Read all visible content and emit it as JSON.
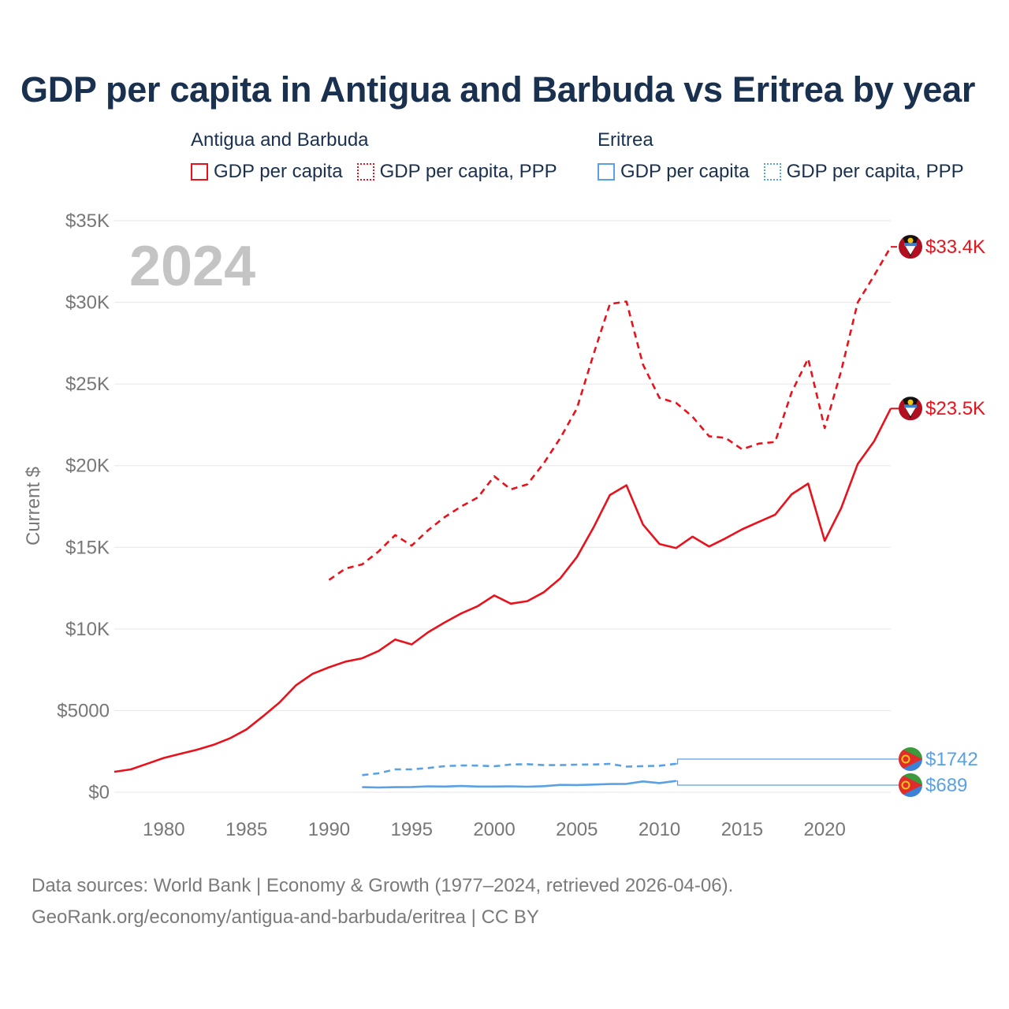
{
  "title": "GDP per capita in Antigua and Barbuda vs Eritrea by year",
  "legend": {
    "groups": [
      {
        "name": "Antigua and Barbuda",
        "items": [
          "GDP per capita",
          "GDP per capita, PPP"
        ]
      },
      {
        "name": "Eritrea",
        "items": [
          "GDP per capita",
          "GDP per capita, PPP"
        ]
      }
    ]
  },
  "colors": {
    "antigua": "#e8121c",
    "eritrea": "#5aa1e3"
  },
  "footer": {
    "line1": "Data sources: World Bank | Economy & Growth (1977–2024, retrieved 2026-04-06).",
    "line2": "GeoRank.org/economy/antigua-and-barbuda/eritrea | CC BY"
  },
  "chart_data": {
    "type": "line",
    "year_label": "2024",
    "ylabel": "Current $",
    "xlim": [
      1977,
      2024
    ],
    "ylim": [
      0,
      35000
    ],
    "x_ticks": [
      1980,
      1985,
      1990,
      1995,
      2000,
      2005,
      2010,
      2015,
      2020
    ],
    "y_ticks": [
      {
        "value": 0,
        "label": "$0"
      },
      {
        "value": 5000,
        "label": "$5000"
      },
      {
        "value": 10000,
        "label": "$10K"
      },
      {
        "value": 15000,
        "label": "$15K"
      },
      {
        "value": 20000,
        "label": "$20K"
      },
      {
        "value": 25000,
        "label": "$25K"
      },
      {
        "value": 30000,
        "label": "$30K"
      },
      {
        "value": 35000,
        "label": "$35K"
      }
    ],
    "series": [
      {
        "name": "Antigua and Barbuda GDP per capita",
        "country": "antigua",
        "dashed": false,
        "end_label": "$23.5K",
        "end_value": 23500,
        "x": [
          1977,
          1978,
          1979,
          1980,
          1981,
          1982,
          1983,
          1984,
          1985,
          1986,
          1987,
          1988,
          1989,
          1990,
          1991,
          1992,
          1993,
          1994,
          1995,
          1996,
          1997,
          1998,
          1999,
          2000,
          2001,
          2002,
          2003,
          2004,
          2005,
          2006,
          2007,
          2008,
          2009,
          2010,
          2011,
          2012,
          2013,
          2014,
          2015,
          2016,
          2017,
          2018,
          2019,
          2020,
          2021,
          2022,
          2023,
          2024
        ],
        "values": [
          1250,
          1400,
          1750,
          2100,
          2350,
          2600,
          2900,
          3300,
          3850,
          4650,
          5500,
          6550,
          7250,
          7650,
          8000,
          8200,
          8650,
          9350,
          9050,
          9800,
          10400,
          10950,
          11400,
          12050,
          11550,
          11700,
          12250,
          13100,
          14400,
          16200,
          18200,
          18800,
          16400,
          15200,
          14950,
          15650,
          15050,
          15550,
          16100,
          16550,
          17000,
          18250,
          18900,
          15400,
          17400,
          20100,
          21500,
          23500
        ]
      },
      {
        "name": "Antigua and Barbuda GDP per capita, PPP",
        "country": "antigua",
        "dashed": true,
        "end_label": "$33.4K",
        "end_value": 33400,
        "x": [
          1990,
          1991,
          1992,
          1993,
          1994,
          1995,
          1996,
          1997,
          1998,
          1999,
          2000,
          2001,
          2002,
          2003,
          2004,
          2005,
          2006,
          2007,
          2008,
          2009,
          2010,
          2011,
          2012,
          2013,
          2014,
          2015,
          2016,
          2017,
          2018,
          2019,
          2020,
          2021,
          2022,
          2023,
          2024
        ],
        "values": [
          13000,
          13700,
          13950,
          14750,
          15750,
          15100,
          16050,
          16850,
          17500,
          18050,
          19350,
          18550,
          18850,
          20150,
          21700,
          23500,
          26800,
          29900,
          30050,
          26200,
          24150,
          23850,
          23000,
          21800,
          21700,
          21000,
          21350,
          21450,
          24500,
          26550,
          22300,
          25800,
          30000,
          31650,
          33400
        ]
      },
      {
        "name": "Eritrea GDP per capita",
        "country": "eritrea",
        "dashed": false,
        "end_label": "$689",
        "end_value": 689,
        "x": [
          1992,
          1993,
          1994,
          1995,
          1996,
          1997,
          1998,
          1999,
          2000,
          2001,
          2002,
          2003,
          2004,
          2005,
          2006,
          2007,
          2008,
          2009,
          2010,
          2011
        ],
        "values": [
          310,
          290,
          310,
          320,
          360,
          350,
          380,
          350,
          350,
          360,
          340,
          370,
          450,
          440,
          470,
          500,
          510,
          660,
          560,
          689
        ]
      },
      {
        "name": "Eritrea GDP per capita, PPP",
        "country": "eritrea",
        "dashed": true,
        "end_label": "$1742",
        "end_value": 1742,
        "x": [
          1992,
          1993,
          1994,
          1995,
          1996,
          1997,
          1998,
          1999,
          2000,
          2001,
          2002,
          2003,
          2004,
          2005,
          2006,
          2007,
          2008,
          2009,
          2010,
          2011
        ],
        "values": [
          1050,
          1160,
          1400,
          1400,
          1480,
          1600,
          1640,
          1630,
          1590,
          1700,
          1720,
          1660,
          1660,
          1690,
          1700,
          1740,
          1570,
          1600,
          1620,
          1742
        ]
      }
    ]
  }
}
